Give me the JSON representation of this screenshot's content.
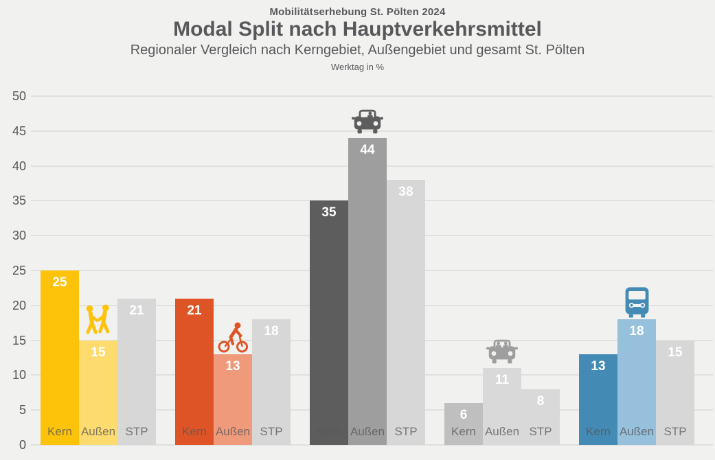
{
  "header": {
    "overtitle": "Mobilitätserhebung St. Pölten 2024",
    "title": "Modal Split nach Hauptverkehrsmittel",
    "subtitle": "Regionaler Vergleich nach Kerngebiet, Außengebiet und gesamt St. Pölten",
    "unit_note": "Werktag in %"
  },
  "chart_data": {
    "type": "bar",
    "title": "Modal Split nach Hauptverkehrsmittel",
    "subtitle": "Regionaler Vergleich nach Kerngebiet, Außengebiet und gesamt St. Pölten",
    "unit": "Werktag in %",
    "categories": [
      "Kern",
      "Außen",
      "STP"
    ],
    "ylim": [
      0,
      50
    ],
    "ytick_step": 5,
    "grid": true,
    "legend_position": "none",
    "value_label_style": "white bold inside bar top",
    "groups": [
      {
        "icon": "pedestrians-icon",
        "values": [
          25,
          15,
          21
        ],
        "colors": {
          "kern": "#FDC30B",
          "aussen": "#FDDB6E",
          "stp": "#D7D7D7",
          "icon": "#FDC30B"
        }
      },
      {
        "icon": "cyclist-icon",
        "values": [
          21,
          13,
          18
        ],
        "colors": {
          "kern": "#DF5426",
          "aussen": "#EF9A7B",
          "stp": "#D7D7D7",
          "icon": "#DF5426"
        }
      },
      {
        "icon": "car-driver-icon",
        "values": [
          35,
          44,
          38
        ],
        "colors": {
          "kern": "#5D5D5D",
          "aussen": "#9E9E9E",
          "stp": "#D7D7D7",
          "icon": "#5D5D5D"
        }
      },
      {
        "icon": "car-passengers-icon",
        "values": [
          6,
          11,
          8
        ],
        "colors": {
          "kern": "#BFBFBF",
          "aussen": "#D9D9D9",
          "stp": "#D9D9D9",
          "icon": "#9E9E9E"
        }
      },
      {
        "icon": "bus-icon",
        "values": [
          13,
          18,
          15
        ],
        "colors": {
          "kern": "#438BB4",
          "aussen": "#96C0DC",
          "stp": "#D7D7D7",
          "icon": "#438BB4"
        }
      }
    ],
    "background_color": "#F1F1F0",
    "gridline_color": "#E0E0DF",
    "text_color": "#58585A"
  }
}
